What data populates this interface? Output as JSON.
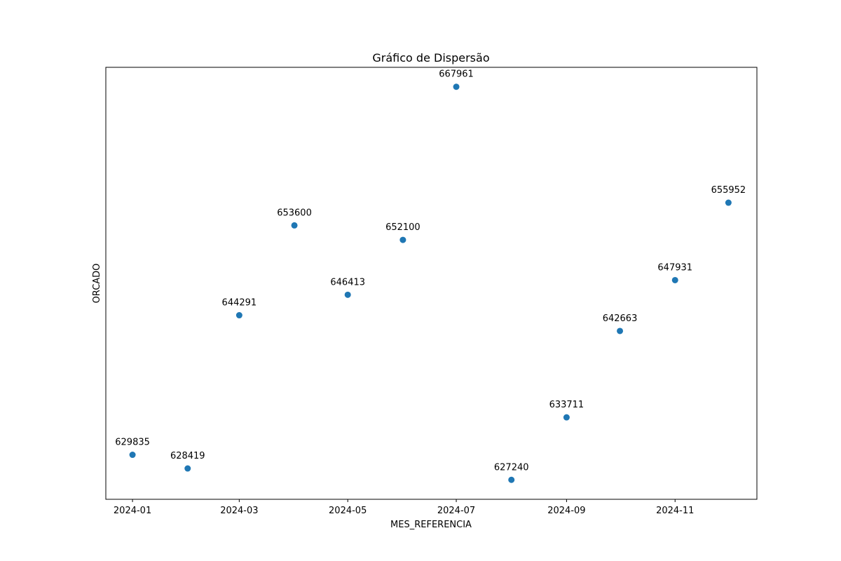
{
  "chart_data": {
    "type": "scatter",
    "title": "Gráfico de Dispersão",
    "xlabel": "MES_REFERENCIA",
    "ylabel": "ORCADO",
    "x": [
      "2024-01",
      "2024-02",
      "2024-03",
      "2024-04",
      "2024-05",
      "2024-06",
      "2024-07",
      "2024-08",
      "2024-09",
      "2024-10",
      "2024-11",
      "2024-12"
    ],
    "y": [
      629835,
      628419,
      644291,
      653600,
      646413,
      652100,
      667961,
      627240,
      633711,
      642663,
      647931,
      655952
    ],
    "data_labels": [
      "629835",
      "628419",
      "644291",
      "653600",
      "646413",
      "652100",
      "667961",
      "627240",
      "633711",
      "642663",
      "647931",
      "655952"
    ],
    "x_ticks": [
      "2024-01",
      "2024-03",
      "2024-05",
      "2024-07",
      "2024-09",
      "2024-11"
    ],
    "xlim": [
      "2023-12-17",
      "2024-12-17"
    ],
    "ylim": [
      625224,
      669977
    ],
    "y_ticks_visible": false,
    "grid": false,
    "legend": "none",
    "marker_color": "#1f77b4"
  }
}
